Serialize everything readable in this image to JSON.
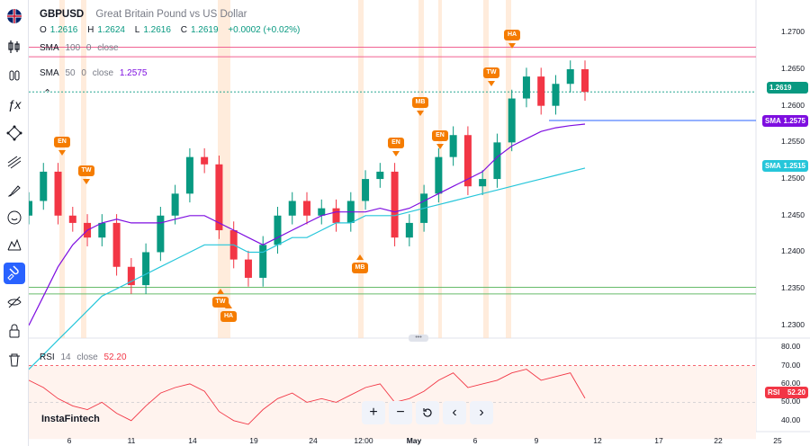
{
  "symbol": {
    "ticker": "GBPUSD",
    "description": "Great Britain Pound vs US Dollar",
    "o_label": "O",
    "o": "1.2616",
    "h_label": "H",
    "h": "1.2624",
    "l_label": "L",
    "l": "1.2616",
    "c_label": "C",
    "c": "1.2619",
    "change": "+0.0002 (+0.02%)"
  },
  "indicators": {
    "sma100": {
      "name": "SMA",
      "length": "100",
      "offset": "0",
      "source": "close",
      "badge": "SMA",
      "value": "1.2515",
      "color": "#26c6da"
    },
    "sma50": {
      "name": "SMA",
      "length": "50",
      "offset": "0",
      "source": "close",
      "value": "1.2575",
      "badge": "SMA",
      "color": "#7e0ee0"
    },
    "rsi": {
      "name": "RSI",
      "length": "14",
      "source": "close",
      "value": "52.20",
      "badge": "RSI",
      "color": "#f23645"
    }
  },
  "current_price": "1.2619",
  "watermark": "InstaFintech",
  "sidebar_icons": [
    "flag-uk-icon",
    "candles-icon",
    "bars-icon",
    "fx-icon",
    "nodes-icon",
    "lines-icon",
    "brush-icon",
    "emoji-icon",
    "pattern-icon",
    "magnet-icon",
    "eye-off-icon",
    "lock-icon",
    "trash-icon"
  ],
  "chart_data": {
    "type": "candlestick",
    "x": [
      "2024-04-03",
      "2024-04-04",
      "2024-04-05",
      "2024-04-06",
      "2024-04-07",
      "2024-04-08",
      "2024-04-09",
      "2024-04-10",
      "2024-04-11",
      "2024-04-12",
      "2024-04-13",
      "2024-04-14",
      "2024-04-15",
      "2024-04-16",
      "2024-04-17",
      "2024-04-18",
      "2024-04-19",
      "2024-04-20",
      "2024-04-21",
      "2024-04-22",
      "2024-04-23",
      "2024-04-24",
      "2024-04-25",
      "2024-04-26",
      "2024-04-27",
      "2024-04-28",
      "2024-04-29",
      "2024-04-30",
      "2024-05-01",
      "2024-05-02",
      "2024-05-03",
      "2024-05-04",
      "2024-05-05",
      "2024-05-06",
      "2024-05-07",
      "2024-05-08",
      "2024-05-09",
      "2024-05-10",
      "2024-05-11"
    ],
    "close": [
      1.247,
      1.251,
      1.245,
      1.244,
      1.242,
      1.244,
      1.238,
      1.2355,
      1.24,
      1.245,
      1.248,
      1.253,
      1.252,
      1.243,
      1.239,
      1.2365,
      1.241,
      1.245,
      1.247,
      1.245,
      1.246,
      1.244,
      1.247,
      1.25,
      1.251,
      1.242,
      1.244,
      1.248,
      1.253,
      1.256,
      1.249,
      1.25,
      1.255,
      1.261,
      1.264,
      1.26,
      1.263,
      1.265,
      1.2619
    ],
    "sma50": [
      1.23,
      1.234,
      1.238,
      1.241,
      1.243,
      1.244,
      1.2445,
      1.244,
      1.244,
      1.244,
      1.2445,
      1.245,
      1.245,
      1.244,
      1.243,
      1.242,
      1.241,
      1.242,
      1.243,
      1.244,
      1.245,
      1.2455,
      1.2455,
      1.2455,
      1.246,
      1.2455,
      1.246,
      1.247,
      1.248,
      1.249,
      1.25,
      1.251,
      1.253,
      1.2545,
      1.2555,
      1.2565,
      1.257,
      1.2573,
      1.2575
    ],
    "sma100": [
      1.224,
      1.226,
      1.228,
      1.23,
      1.232,
      1.234,
      1.235,
      1.236,
      1.237,
      1.238,
      1.239,
      1.24,
      1.241,
      1.241,
      1.241,
      1.24,
      1.24,
      1.241,
      1.242,
      1.242,
      1.243,
      1.244,
      1.244,
      1.245,
      1.245,
      1.245,
      1.2455,
      1.246,
      1.2465,
      1.247,
      1.2475,
      1.248,
      1.2485,
      1.249,
      1.2495,
      1.25,
      1.2505,
      1.251,
      1.2515
    ],
    "rsi": [
      62,
      58,
      52,
      48,
      46,
      50,
      44,
      40,
      48,
      55,
      58,
      60,
      56,
      45,
      40,
      38,
      46,
      52,
      55,
      50,
      52,
      50,
      54,
      58,
      60,
      50,
      52,
      56,
      62,
      66,
      58,
      60,
      62,
      66,
      68,
      62,
      64,
      66,
      52.2
    ],
    "y_axis": {
      "ticks": [
        "1.2700",
        "1.2650",
        "1.2600",
        "1.2550",
        "1.2500",
        "1.2450",
        "1.2400",
        "1.2350",
        "1.2300"
      ],
      "ylim": [
        1.229,
        1.272
      ]
    },
    "rsi_axis": {
      "ticks": [
        "80.00",
        "70.00",
        "60.00",
        "50.00",
        "40.00"
      ],
      "ylim": [
        35,
        82
      ]
    },
    "x_axis_labels": [
      "6",
      "11",
      "14",
      "19",
      "24",
      "12:00",
      "May",
      "6",
      "9",
      "12",
      "17",
      "22",
      "25"
    ],
    "horizontal_levels_pink": [
      1.268,
      1.2667
    ],
    "horizontal_levels_green": [
      1.2352,
      1.2343
    ],
    "horizontal_level_blue": 1.258,
    "signals": [
      {
        "label": "EN",
        "dir": "down"
      },
      {
        "label": "TW",
        "dir": "down"
      },
      {
        "label": "TW",
        "dir": "up"
      },
      {
        "label": "HA",
        "dir": "up"
      },
      {
        "label": "MB",
        "dir": "up"
      },
      {
        "label": "EN",
        "dir": "down"
      },
      {
        "label": "MB",
        "dir": "down"
      },
      {
        "label": "EN",
        "dir": "down"
      },
      {
        "label": "TW",
        "dir": "down"
      },
      {
        "label": "HA",
        "dir": "down"
      }
    ]
  }
}
